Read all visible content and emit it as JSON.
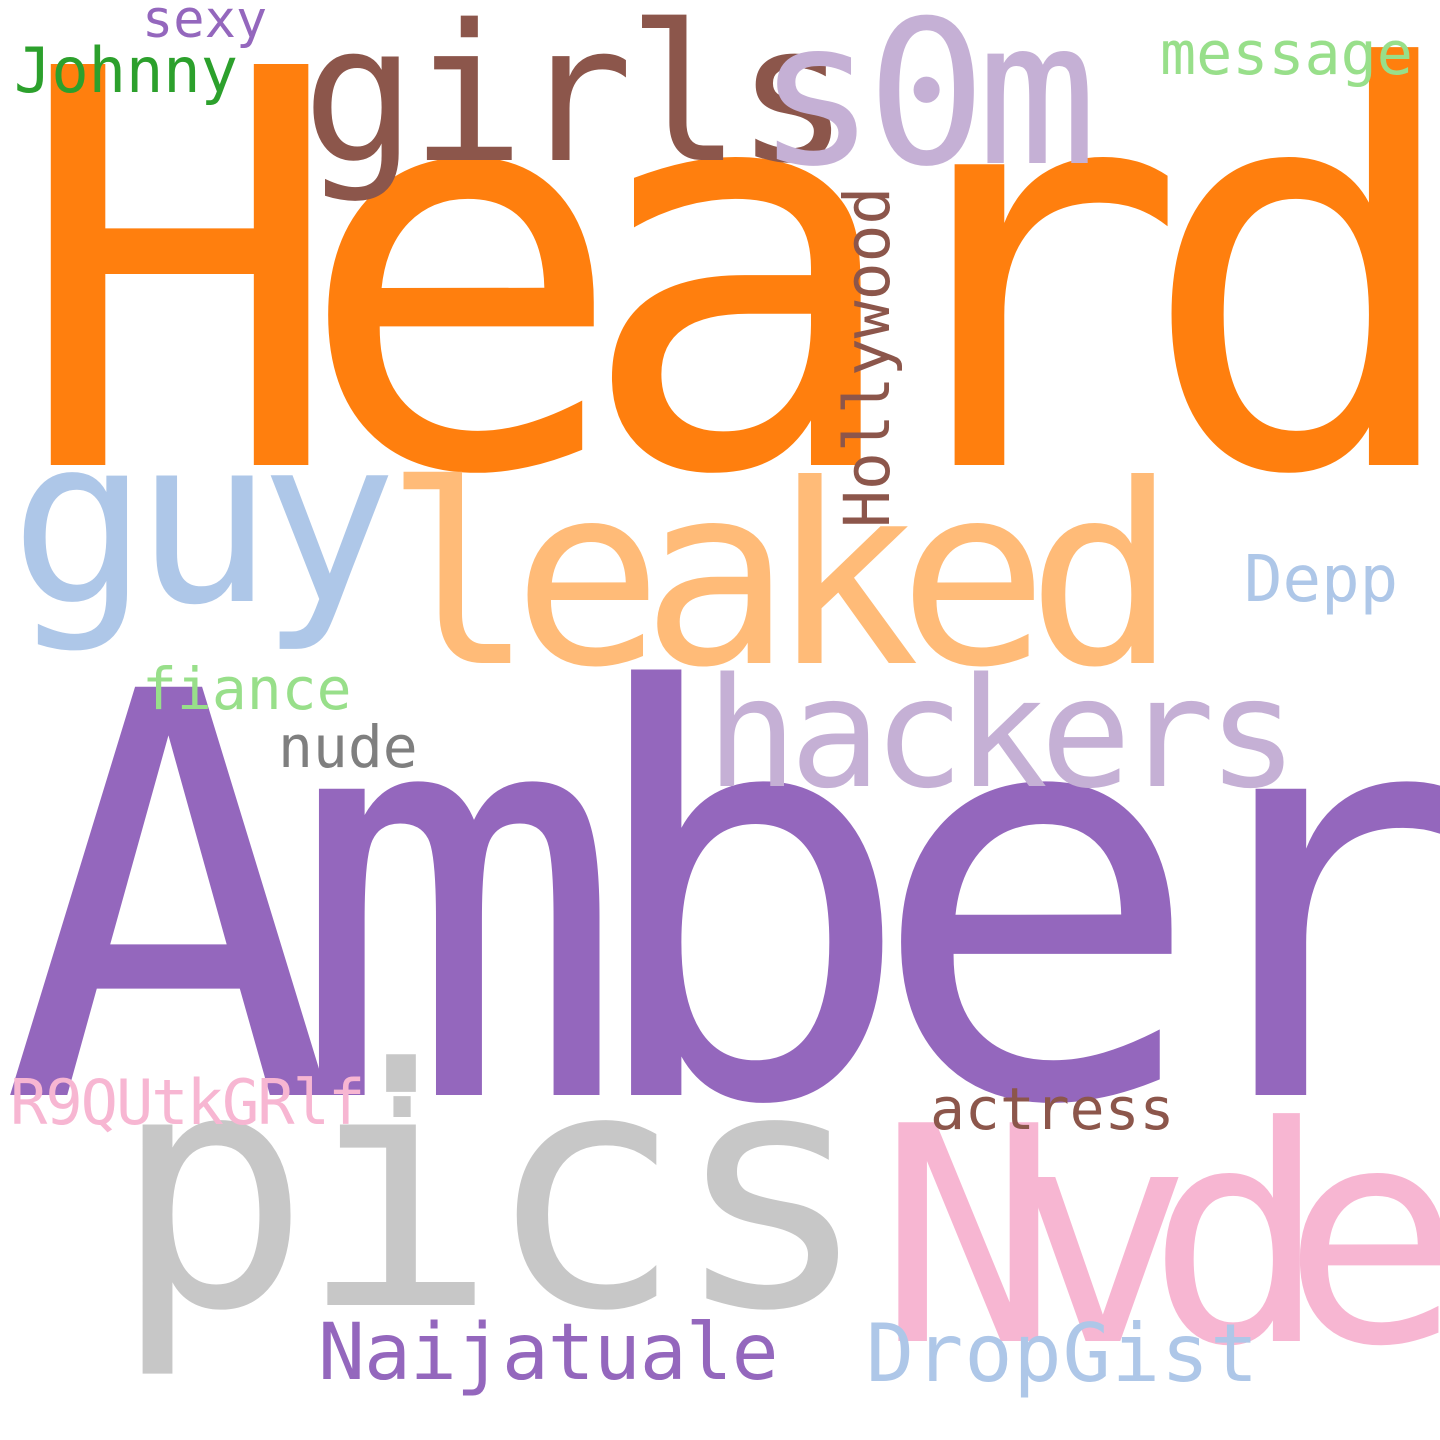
{
  "words": {
    "heard": {
      "text": "Heard",
      "color": "#ff7f0e"
    },
    "amber": {
      "text": "Amber",
      "color": "#9467bd"
    },
    "pics": {
      "text": "pics",
      "color": "#c7c7c7"
    },
    "nvde": {
      "text": "Nvde",
      "color": "#f7b6d2"
    },
    "leaked": {
      "text": "leaked",
      "color": "#ffbb78"
    },
    "guy": {
      "text": "guy",
      "color": "#aec7e8"
    },
    "girls": {
      "text": "girls",
      "color": "#8c564b"
    },
    "s0m": {
      "text": "s0m",
      "color": "#c5b0d5"
    },
    "hackers": {
      "text": "hackers",
      "color": "#c5b0d5"
    },
    "hollywood": {
      "text": "Hollywood",
      "color": "#8c564b"
    },
    "depp": {
      "text": "Depp",
      "color": "#aec7e8"
    },
    "message": {
      "text": "message",
      "color": "#98df8a"
    },
    "sexy": {
      "text": "sexy",
      "color": "#9467bd"
    },
    "johnny": {
      "text": "Johnny",
      "color": "#2ca02c"
    },
    "fiance": {
      "text": "fiance",
      "color": "#98df8a"
    },
    "nude": {
      "text": "nude",
      "color": "#7f7f7f"
    },
    "r9qutkgrlf": {
      "text": "R9QUtkGRlf",
      "color": "#f7b6d2"
    },
    "dot": {
      "text": ".",
      "color": "#c7c7c7"
    },
    "actress": {
      "text": "actress",
      "color": "#8c564b"
    },
    "naijatuale": {
      "text": "Naijatuale",
      "color": "#9467bd"
    },
    "dropgist": {
      "text": "DropGist",
      "color": "#aec7e8"
    }
  }
}
